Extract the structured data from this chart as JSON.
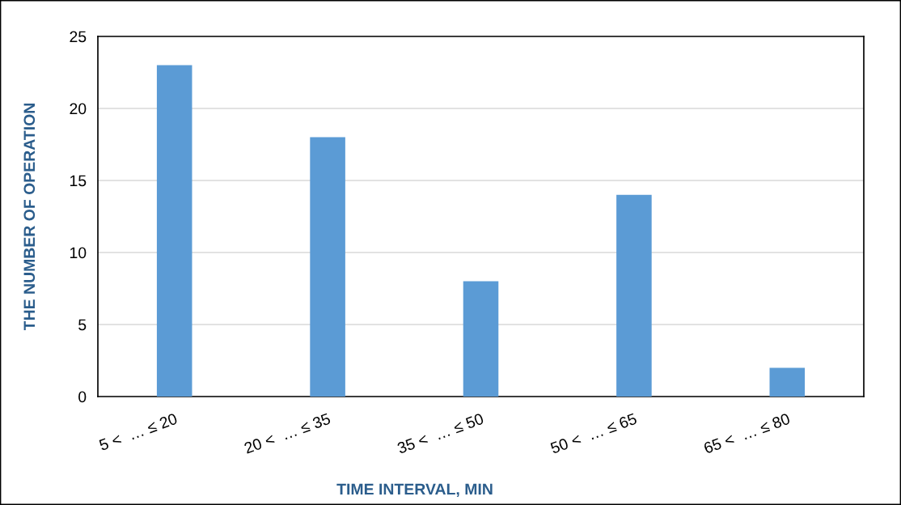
{
  "chart_data": {
    "type": "bar",
    "categories": [
      "5 <  … ≤ 20",
      "20 <  … ≤ 35",
      "35 <  … ≤ 50",
      "50 <  … ≤ 65",
      "65 <  … ≤ 80"
    ],
    "values": [
      23,
      18,
      8,
      14,
      2
    ],
    "color": "#5b9bd5",
    "xlabel": "TIME INTERVAL, MIN",
    "ylabel": "THE NUMBER OF OPERATION",
    "ylim": [
      0,
      25
    ],
    "yticks": [
      0,
      5,
      10,
      15,
      20,
      25
    ],
    "grid": "y",
    "legend": false
  }
}
